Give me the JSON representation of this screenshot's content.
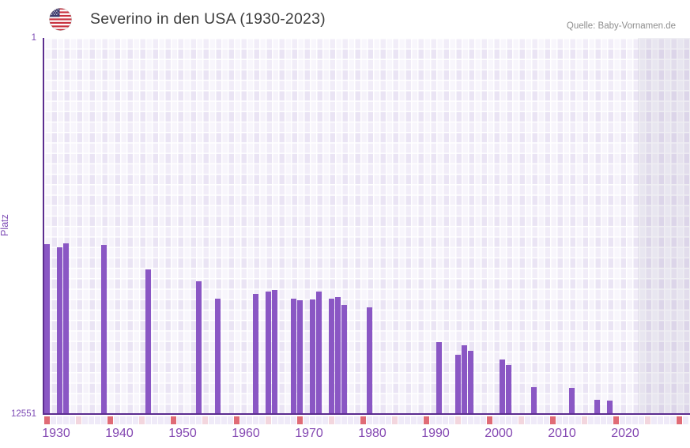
{
  "header": {
    "title": "Severino in den USA (1930-2023)",
    "source": "Quelle: Baby-Vornamen.de",
    "flag": "us-flag-icon"
  },
  "colors": {
    "bar": "#8a57c4",
    "axis_line": "#5b2c8f",
    "x_tick_label": "#8448b2",
    "y_tick_label": "#7e4cb5",
    "decade_square": "#e06b76",
    "half_decade_square": "#f3d6de",
    "plain_square": "#efeaf8",
    "future_band": "rgba(99,85,135,0.10)",
    "title_text": "#3d3d3d",
    "source_text": "#8e8e8e"
  },
  "chart_data": {
    "type": "bar",
    "title": "Severino in den USA (1930-2023)",
    "ylabel": "Platz",
    "y_axis": {
      "top_label": "1",
      "bottom_label": "12551",
      "min": 1,
      "max": 12551,
      "inverted": true,
      "note": "rank 1 at top, larger rank = shorter bar from bottom? no: bars grow up from axis, top of bar = rank"
    },
    "x_axis": {
      "start": 1930,
      "grid_end": 2031,
      "data_end": 2023,
      "shaded_from": 2024,
      "decade_labels": [
        "1930",
        "1940",
        "1950",
        "1960",
        "1970",
        "1980",
        "1990",
        "2000",
        "2010",
        "2020"
      ]
    },
    "grid": true,
    "legend": "none",
    "series": [
      {
        "name": "Platz",
        "points": [
          {
            "year": 1930,
            "rank": 6910
          },
          {
            "year": 1932,
            "rank": 6990
          },
          {
            "year": 1933,
            "rank": 6880
          },
          {
            "year": 1939,
            "rank": 6930
          },
          {
            "year": 1946,
            "rank": 7750
          },
          {
            "year": 1954,
            "rank": 8150
          },
          {
            "year": 1957,
            "rank": 8730
          },
          {
            "year": 1963,
            "rank": 8570
          },
          {
            "year": 1965,
            "rank": 8490
          },
          {
            "year": 1966,
            "rank": 8440
          },
          {
            "year": 1969,
            "rank": 8730
          },
          {
            "year": 1970,
            "rank": 8780
          },
          {
            "year": 1972,
            "rank": 8750
          },
          {
            "year": 1973,
            "rank": 8490
          },
          {
            "year": 1975,
            "rank": 8730
          },
          {
            "year": 1976,
            "rank": 8670
          },
          {
            "year": 1977,
            "rank": 8940
          },
          {
            "year": 1981,
            "rank": 9020
          },
          {
            "year": 1992,
            "rank": 10180
          },
          {
            "year": 1995,
            "rank": 10600
          },
          {
            "year": 1996,
            "rank": 10280
          },
          {
            "year": 1997,
            "rank": 10470
          },
          {
            "year": 2002,
            "rank": 10760
          },
          {
            "year": 2003,
            "rank": 10940
          },
          {
            "year": 2007,
            "rank": 11680
          },
          {
            "year": 2013,
            "rank": 11710
          },
          {
            "year": 2017,
            "rank": 12100
          },
          {
            "year": 2019,
            "rank": 12130
          }
        ]
      }
    ]
  }
}
